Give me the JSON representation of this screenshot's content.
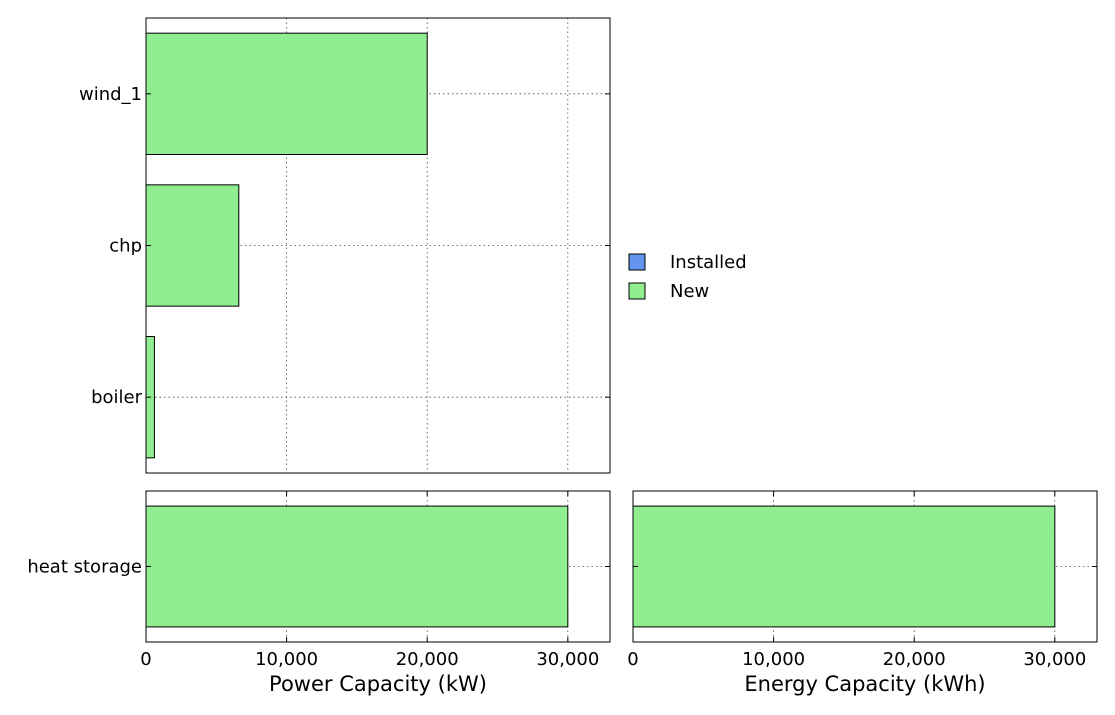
{
  "chart_data": [
    {
      "type": "bar",
      "orientation": "horizontal",
      "categories": [
        "wind_1",
        "chp",
        "boiler"
      ],
      "series": [
        {
          "name": "Installed",
          "values": [
            0,
            0,
            0
          ]
        },
        {
          "name": "New",
          "values": [
            20000,
            6600,
            600
          ]
        }
      ],
      "xlim": [
        0,
        33000
      ],
      "grid": true
    },
    {
      "type": "bar",
      "orientation": "horizontal",
      "categories": [
        "heat storage"
      ],
      "series": [
        {
          "name": "Installed",
          "values": [
            0
          ]
        },
        {
          "name": "New",
          "values": [
            30000
          ]
        }
      ],
      "xlim": [
        0,
        33000
      ],
      "xticks": [
        "0",
        "10,000",
        "20,000",
        "30,000"
      ],
      "xlabel": "Power Capacity (kW)",
      "grid": true
    },
    {
      "type": "bar",
      "orientation": "horizontal",
      "categories": [
        "heat storage"
      ],
      "series": [
        {
          "name": "Installed",
          "values": [
            0
          ]
        },
        {
          "name": "New",
          "values": [
            30000
          ]
        }
      ],
      "xlim": [
        0,
        33000
      ],
      "xticks": [
        "0",
        "10,000",
        "20,000",
        "30,000"
      ],
      "xlabel": "Energy Capacity (kWh)",
      "grid": true
    }
  ],
  "legend": {
    "placement": "right",
    "items": [
      {
        "label": "Installed",
        "color": "#6495ed"
      },
      {
        "label": "New",
        "color": "#90ee90"
      }
    ]
  }
}
